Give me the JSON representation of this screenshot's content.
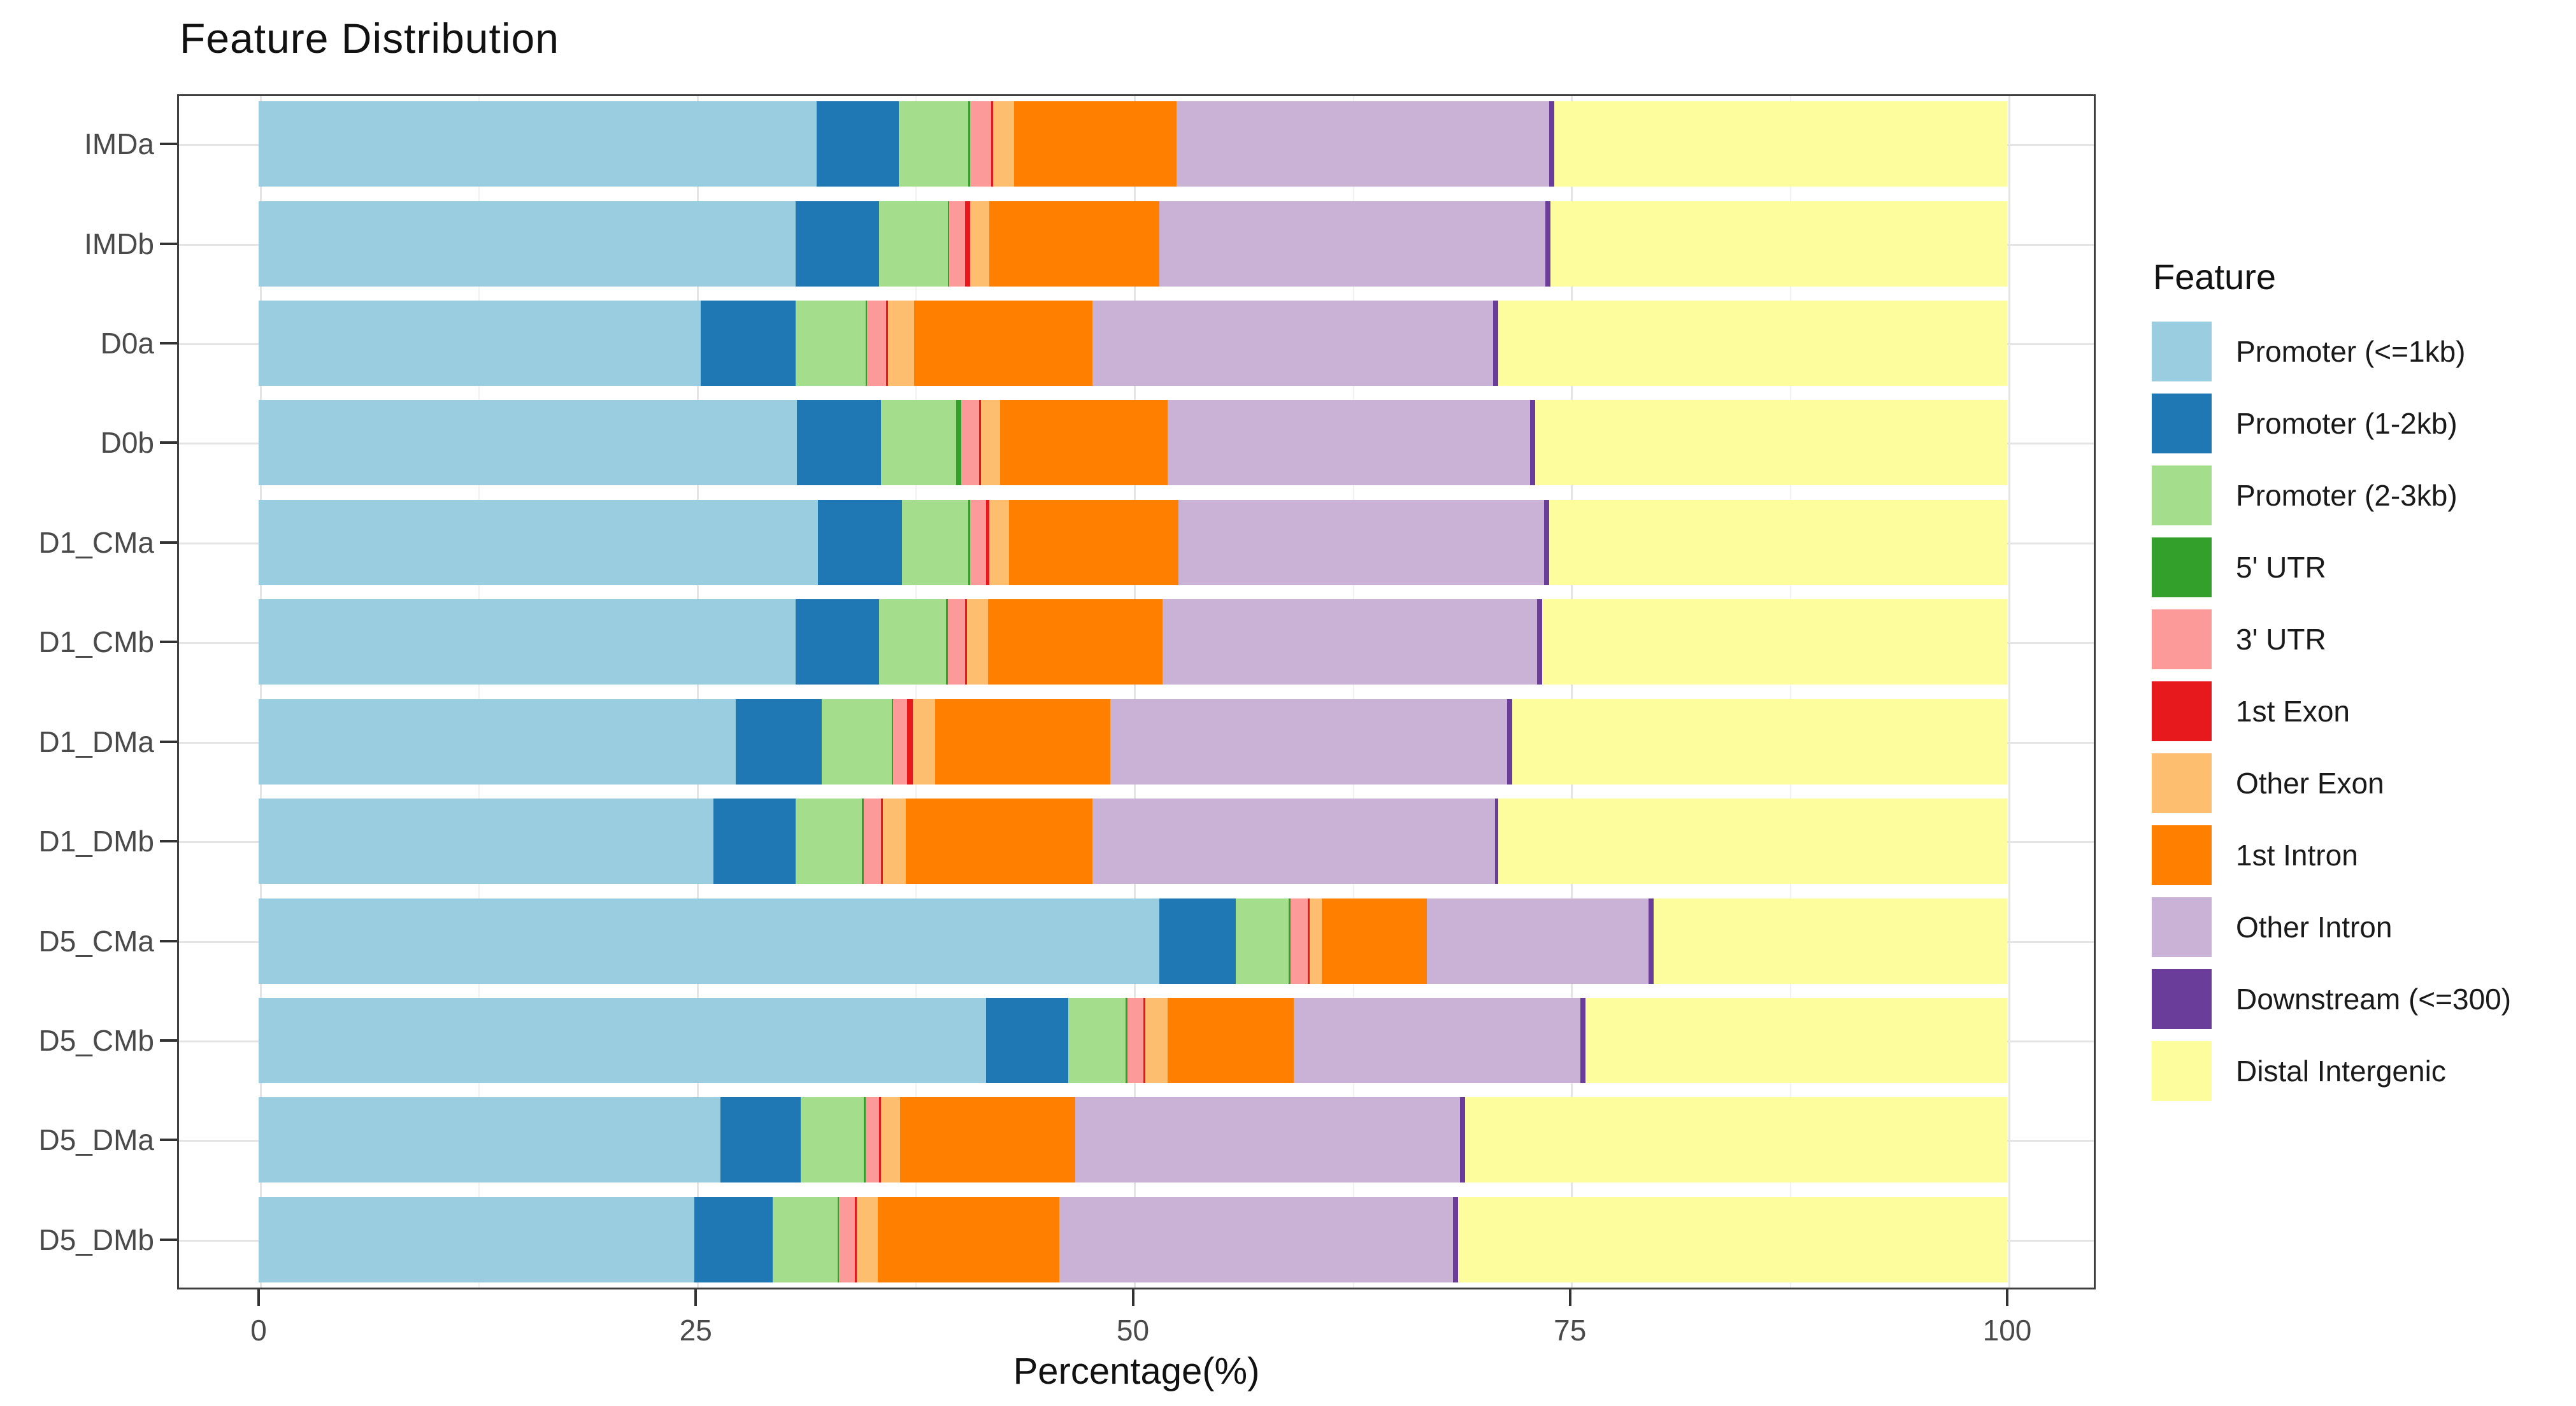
{
  "title": "Feature Distribution",
  "chart_data": {
    "type": "bar",
    "orientation": "horizontal",
    "stacked": true,
    "title": "Feature Distribution",
    "xlabel": "Percentage(%)",
    "ylabel": "",
    "xlim": [
      0,
      100
    ],
    "x_ticks": [
      "0",
      "25",
      "50",
      "75",
      "100"
    ],
    "x_tick_values": [
      0,
      25,
      50,
      75,
      100
    ],
    "x_minor_tick_values": [
      12.5,
      37.5,
      62.5,
      87.5
    ],
    "grid": true,
    "legend_title": "Feature",
    "legend_position": "right",
    "categories": [
      "IMDa",
      "IMDb",
      "D0a",
      "D0b",
      "D1_CMa",
      "D1_CMb",
      "D1_DMa",
      "D1_DMb",
      "D5_CMa",
      "D5_CMb",
      "D5_DMa",
      "D5_DMb"
    ],
    "series": [
      {
        "name": "Promoter (<=1kb)",
        "color": "#9bcde0",
        "values": [
          31.9,
          30.7,
          25.3,
          30.8,
          32.0,
          30.7,
          27.3,
          26.0,
          51.5,
          41.6,
          26.4,
          24.9
        ]
      },
      {
        "name": "Promoter (1-2kb)",
        "color": "#1f78b4",
        "values": [
          4.7,
          4.8,
          5.4,
          4.8,
          4.8,
          4.8,
          4.9,
          4.7,
          4.4,
          4.7,
          4.6,
          4.5
        ]
      },
      {
        "name": "Promoter (2-3kb)",
        "color": "#a4dd8c",
        "values": [
          4.0,
          3.9,
          4.0,
          4.3,
          3.8,
          3.8,
          4.0,
          3.8,
          3.0,
          3.3,
          3.6,
          3.7
        ]
      },
      {
        "name": "5' UTR",
        "color": "#33a02c",
        "values": [
          0.1,
          0.1,
          0.1,
          0.3,
          0.1,
          0.1,
          0.1,
          0.1,
          0.1,
          0.1,
          0.1,
          0.1
        ]
      },
      {
        "name": "3' UTR",
        "color": "#fb9a99",
        "values": [
          1.2,
          0.9,
          1.1,
          1.0,
          0.9,
          1.0,
          0.8,
          1.0,
          1.0,
          0.9,
          0.8,
          0.9
        ]
      },
      {
        "name": "1st Exon",
        "color": "#e8191c",
        "values": [
          0.1,
          0.3,
          0.1,
          0.1,
          0.2,
          0.1,
          0.3,
          0.1,
          0.1,
          0.1,
          0.1,
          0.1
        ]
      },
      {
        "name": "Other Exon",
        "color": "#fdbf6f",
        "values": [
          1.2,
          1.1,
          1.5,
          1.1,
          1.1,
          1.2,
          1.3,
          1.3,
          0.7,
          1.3,
          1.1,
          1.2
        ]
      },
      {
        "name": "1st Intron",
        "color": "#ff7f00",
        "values": [
          9.3,
          9.7,
          10.2,
          9.6,
          9.7,
          10.0,
          10.0,
          10.7,
          6.0,
          7.2,
          10.0,
          10.4
        ]
      },
      {
        "name": "Other Intron",
        "color": "#cab2d6",
        "values": [
          21.3,
          22.1,
          22.9,
          20.7,
          20.9,
          21.4,
          22.7,
          23.0,
          12.7,
          16.4,
          22.0,
          22.5
        ]
      },
      {
        "name": "Downstream (<=300)",
        "color": "#6a3d9a",
        "values": [
          0.3,
          0.3,
          0.3,
          0.3,
          0.3,
          0.3,
          0.3,
          0.2,
          0.3,
          0.3,
          0.3,
          0.3
        ]
      },
      {
        "name": "Distal Intergenic",
        "color": "#fdfd9d",
        "values": [
          25.9,
          26.1,
          29.1,
          27.0,
          26.2,
          26.6,
          28.3,
          29.1,
          20.2,
          24.1,
          31.0,
          31.4
        ]
      }
    ]
  }
}
